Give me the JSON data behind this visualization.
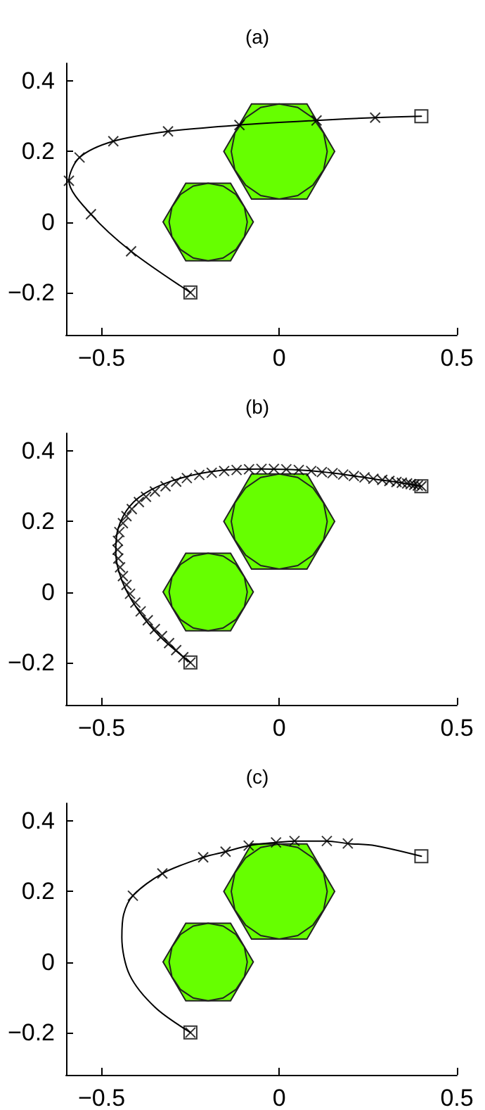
{
  "chart_data": [
    {
      "type": "line",
      "title": "(a)",
      "xlim": [
        -0.6,
        0.5
      ],
      "ylim": [
        -0.32,
        0.45
      ],
      "xticks": [
        -0.5,
        0,
        0.5
      ],
      "yticks": [
        -0.2,
        0,
        0.2,
        0.4
      ],
      "grid": false,
      "series": [
        {
          "type": "area",
          "color": "#66ff00",
          "x": [
            0.156,
            0.078,
            -0.078,
            -0.156,
            -0.078,
            0.078
          ],
          "values": [
            0.2,
            0.335,
            0.335,
            0.2,
            0.065,
            0.065
          ]
        },
        {
          "type": "area",
          "color": "#66ff00",
          "x": [
            0.135,
            0.125,
            0.095,
            0.052,
            0,
            -0.052,
            -0.095,
            -0.125,
            -0.135,
            -0.125,
            -0.095,
            -0.052,
            0,
            0.052,
            0.095,
            0.125
          ],
          "values": [
            0.2,
            0.252,
            0.295,
            0.325,
            0.335,
            0.325,
            0.295,
            0.252,
            0.2,
            0.148,
            0.105,
            0.075,
            0.065,
            0.075,
            0.105,
            0.148
          ]
        },
        {
          "type": "area",
          "color": "#66ff00",
          "x": [
            -0.073,
            -0.137,
            -0.263,
            -0.327,
            -0.263,
            -0.137
          ],
          "values": [
            0,
            0.11,
            0.11,
            0,
            -0.11,
            -0.11
          ]
        },
        {
          "type": "area",
          "color": "#66ff00",
          "x": [
            -0.09,
            -0.098,
            -0.122,
            -0.158,
            -0.2,
            -0.242,
            -0.278,
            -0.302,
            -0.31,
            -0.302,
            -0.278,
            -0.242,
            -0.2,
            -0.158,
            -0.122,
            -0.098
          ],
          "values": [
            0,
            0.042,
            0.078,
            0.102,
            0.11,
            0.102,
            0.078,
            0.042,
            0,
            -0.042,
            -0.078,
            -0.102,
            -0.11,
            -0.102,
            -0.078,
            -0.042
          ]
        },
        {
          "color": "#000000",
          "marker": "none",
          "x": [
            -0.25,
            -0.417,
            -0.53,
            -0.592,
            -0.562,
            -0.467,
            -0.313,
            -0.112,
            0.105,
            0.27,
            0.4
          ],
          "values": [
            -0.2,
            -0.083,
            0.022,
            0.117,
            0.183,
            0.229,
            0.257,
            0.275,
            0.288,
            0.296,
            0.3
          ]
        },
        {
          "type": "scatter",
          "color": "#000000",
          "marker": "square",
          "x": [
            -0.25,
            0.4
          ],
          "values": [
            -0.2,
            0.3
          ]
        },
        {
          "type": "scatter",
          "color": "#000000",
          "marker": "cross",
          "x": [
            -0.25,
            -0.417,
            -0.53,
            -0.592,
            -0.562,
            -0.467,
            -0.313,
            -0.112,
            0.105,
            0.27
          ],
          "values": [
            -0.2,
            -0.083,
            0.022,
            0.117,
            0.183,
            0.229,
            0.257,
            0.275,
            0.288,
            0.296
          ]
        }
      ]
    },
    {
      "type": "line",
      "title": "(b)",
      "xlim": [
        -0.6,
        0.5
      ],
      "ylim": [
        -0.32,
        0.45
      ],
      "xticks": [
        -0.5,
        0,
        0.5
      ],
      "yticks": [
        -0.2,
        0,
        0.2,
        0.4
      ],
      "grid": false,
      "series": [
        {
          "type": "area",
          "color": "#66ff00",
          "x": [
            0.156,
            0.078,
            -0.078,
            -0.156,
            -0.078,
            0.078
          ],
          "values": [
            0.2,
            0.335,
            0.335,
            0.2,
            0.065,
            0.065
          ]
        },
        {
          "type": "area",
          "color": "#66ff00",
          "x": [
            0.135,
            0.125,
            0.095,
            0.052,
            0,
            -0.052,
            -0.095,
            -0.125,
            -0.135,
            -0.125,
            -0.095,
            -0.052,
            0,
            0.052,
            0.095,
            0.125
          ],
          "values": [
            0.2,
            0.252,
            0.295,
            0.325,
            0.335,
            0.325,
            0.295,
            0.252,
            0.2,
            0.148,
            0.105,
            0.075,
            0.065,
            0.075,
            0.105,
            0.148
          ]
        },
        {
          "type": "area",
          "color": "#66ff00",
          "x": [
            -0.073,
            -0.137,
            -0.263,
            -0.327,
            -0.263,
            -0.137
          ],
          "values": [
            0,
            0.11,
            0.11,
            0,
            -0.11,
            -0.11
          ]
        },
        {
          "type": "area",
          "color": "#66ff00",
          "x": [
            -0.09,
            -0.098,
            -0.122,
            -0.158,
            -0.2,
            -0.242,
            -0.278,
            -0.302,
            -0.31,
            -0.302,
            -0.278,
            -0.242,
            -0.2,
            -0.158,
            -0.122,
            -0.098
          ],
          "values": [
            0,
            0.042,
            0.078,
            0.102,
            0.11,
            0.102,
            0.078,
            0.042,
            0,
            -0.042,
            -0.078,
            -0.102,
            -0.11,
            -0.102,
            -0.078,
            -0.042
          ]
        },
        {
          "color": "#000000",
          "marker": "none",
          "x": [
            -0.25,
            -0.336,
            -0.4,
            -0.443,
            -0.46,
            -0.454,
            -0.421,
            -0.362,
            -0.27,
            -0.164,
            -0.046,
            0.059,
            0.164,
            0.27,
            0.349,
            0.4
          ],
          "values": [
            -0.2,
            -0.126,
            -0.047,
            0.033,
            0.112,
            0.178,
            0.243,
            0.289,
            0.325,
            0.345,
            0.349,
            0.346,
            0.336,
            0.32,
            0.309,
            0.3
          ]
        },
        {
          "type": "scatter",
          "color": "#000000",
          "marker": "square",
          "x": [
            -0.25,
            0.4
          ],
          "values": [
            -0.2,
            0.3
          ]
        },
        {
          "type": "scatter",
          "color": "#000000",
          "marker": "cross",
          "x": [
            -0.25,
            -0.27,
            -0.29,
            -0.31,
            -0.33,
            -0.35,
            -0.37,
            -0.39,
            -0.405,
            -0.42,
            -0.43,
            -0.44,
            -0.448,
            -0.453,
            -0.455,
            -0.454,
            -0.45,
            -0.44,
            -0.43,
            -0.415,
            -0.395,
            -0.375,
            -0.35,
            -0.32,
            -0.29,
            -0.26,
            -0.225,
            -0.19,
            -0.155,
            -0.12,
            -0.085,
            -0.05,
            -0.015,
            0.02,
            0.055,
            0.09,
            0.12,
            0.15,
            0.18,
            0.21,
            0.24,
            0.265,
            0.29,
            0.31,
            0.33,
            0.345,
            0.36,
            0.37,
            0.38,
            0.39,
            0.4
          ],
          "values": [
            -0.2,
            -0.185,
            -0.165,
            -0.145,
            -0.125,
            -0.105,
            -0.08,
            -0.055,
            -0.03,
            -0.005,
            0.02,
            0.045,
            0.07,
            0.095,
            0.12,
            0.145,
            0.17,
            0.195,
            0.215,
            0.235,
            0.255,
            0.27,
            0.285,
            0.3,
            0.313,
            0.323,
            0.332,
            0.338,
            0.343,
            0.346,
            0.348,
            0.349,
            0.349,
            0.348,
            0.346,
            0.343,
            0.34,
            0.337,
            0.333,
            0.329,
            0.325,
            0.321,
            0.318,
            0.315,
            0.312,
            0.31,
            0.308,
            0.306,
            0.304,
            0.302,
            0.3
          ]
        }
      ]
    },
    {
      "type": "line",
      "title": "(c)",
      "xlim": [
        -0.6,
        0.5
      ],
      "ylim": [
        -0.32,
        0.45
      ],
      "xticks": [
        -0.5,
        0,
        0.5
      ],
      "yticks": [
        -0.2,
        0,
        0.2,
        0.4
      ],
      "grid": false,
      "series": [
        {
          "type": "area",
          "color": "#66ff00",
          "x": [
            0.156,
            0.078,
            -0.078,
            -0.156,
            -0.078,
            0.078
          ],
          "values": [
            0.2,
            0.335,
            0.335,
            0.2,
            0.065,
            0.065
          ]
        },
        {
          "type": "area",
          "color": "#66ff00",
          "x": [
            0.135,
            0.125,
            0.095,
            0.052,
            0,
            -0.052,
            -0.095,
            -0.125,
            -0.135,
            -0.125,
            -0.095,
            -0.052,
            0,
            0.052,
            0.095,
            0.125
          ],
          "values": [
            0.2,
            0.252,
            0.295,
            0.325,
            0.335,
            0.325,
            0.295,
            0.252,
            0.2,
            0.148,
            0.105,
            0.075,
            0.065,
            0.075,
            0.105,
            0.148
          ]
        },
        {
          "type": "area",
          "color": "#66ff00",
          "x": [
            -0.073,
            -0.137,
            -0.263,
            -0.327,
            -0.263,
            -0.137
          ],
          "values": [
            0,
            0.11,
            0.11,
            0,
            -0.11,
            -0.11
          ]
        },
        {
          "type": "area",
          "color": "#66ff00",
          "x": [
            -0.09,
            -0.098,
            -0.122,
            -0.158,
            -0.2,
            -0.242,
            -0.278,
            -0.302,
            -0.31,
            -0.302,
            -0.278,
            -0.242,
            -0.2,
            -0.158,
            -0.122,
            -0.098
          ],
          "values": [
            0,
            0.042,
            0.078,
            0.102,
            0.11,
            0.102,
            0.078,
            0.042,
            0,
            -0.042,
            -0.078,
            -0.102,
            -0.11,
            -0.102,
            -0.078,
            -0.042
          ]
        },
        {
          "color": "#000000",
          "marker": "none",
          "x": [
            -0.25,
            -0.349,
            -0.421,
            -0.443,
            -0.438,
            -0.412,
            -0.329,
            -0.214,
            -0.151,
            -0.086,
            -0.009,
            0.043,
            0.134,
            0.193,
            0.27,
            0.4
          ],
          "values": [
            -0.2,
            -0.129,
            -0.037,
            0.069,
            0.135,
            0.188,
            0.251,
            0.297,
            0.313,
            0.33,
            0.339,
            0.343,
            0.343,
            0.336,
            0.33,
            0.3
          ]
        },
        {
          "type": "scatter",
          "color": "#000000",
          "marker": "square",
          "x": [
            -0.25,
            0.4
          ],
          "values": [
            -0.2,
            0.3
          ]
        },
        {
          "type": "scatter",
          "color": "#000000",
          "marker": "cross",
          "x": [
            -0.25,
            -0.412,
            -0.329,
            -0.214,
            -0.151,
            -0.086,
            -0.009,
            0.043,
            0.134,
            0.193
          ],
          "values": [
            -0.2,
            0.188,
            0.251,
            0.297,
            0.313,
            0.33,
            0.339,
            0.343,
            0.343,
            0.336
          ]
        }
      ]
    }
  ]
}
